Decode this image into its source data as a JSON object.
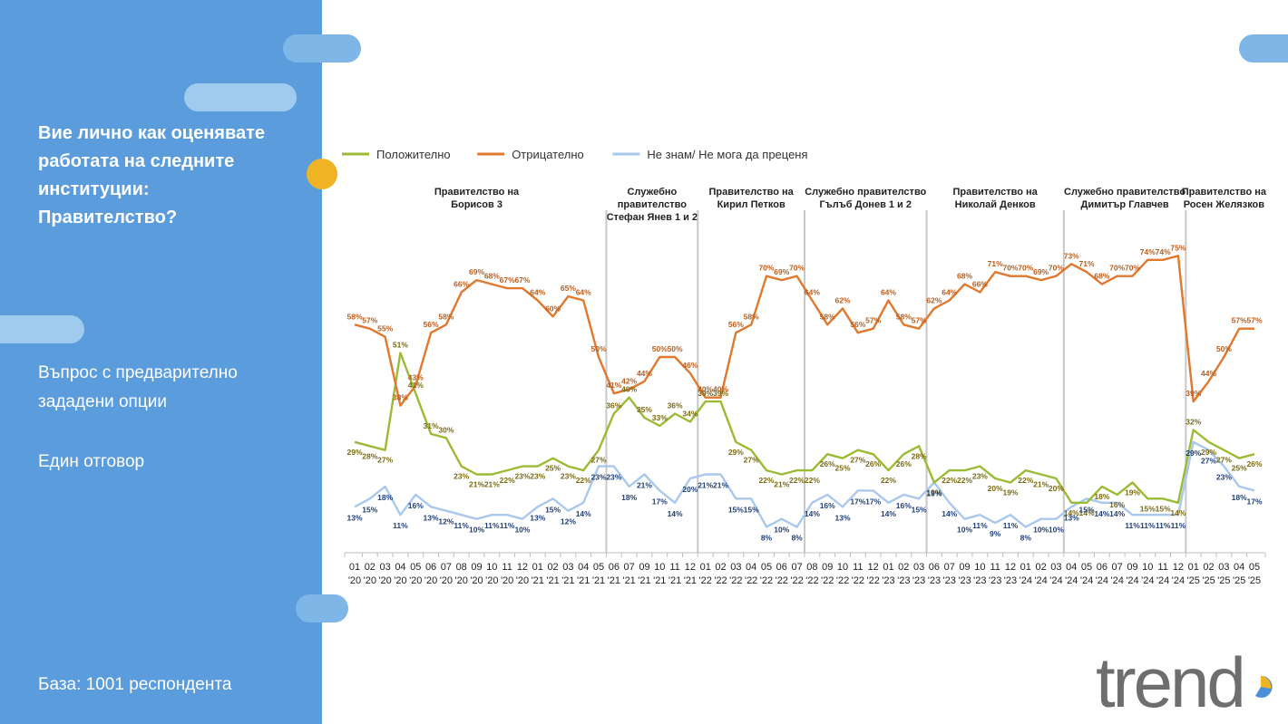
{
  "sidebar": {
    "question_lines": [
      "Вие лично как оценявате",
      "работата на следните",
      "институции:",
      "Правителство?"
    ],
    "note_lines": [
      "Въпрос с предварително",
      "зададени опции"
    ],
    "answer_type": "Един отговор",
    "base": "База:  1001 респондента"
  },
  "logo": {
    "text": "trend",
    "colors": {
      "text": "#6e6e6e",
      "accent_blue": "#4a90d9",
      "accent_yellow": "#f0b323"
    }
  },
  "colors": {
    "sidebar": "#5b9cdc",
    "pill_light": "#9fcbef",
    "pill_mid": "#7eb6e8",
    "dot": "#f0b323"
  },
  "chart_data": {
    "type": "line",
    "x": [
      "01 '20",
      "02 '20",
      "03 '20",
      "04 '20",
      "05 '20",
      "06 '20",
      "07 '20",
      "08 '20",
      "09 '20",
      "10 '20",
      "11 '20",
      "12 '20",
      "01 '21",
      "02 '21",
      "03 '21",
      "04 '21",
      "05 '21",
      "06 '21",
      "07 '21",
      "09 '21",
      "10 '21",
      "11 '21",
      "12 '21",
      "01 '22",
      "02 '22",
      "03 '22",
      "04 '22",
      "05 '22",
      "06 '22",
      "07 '22",
      "08 '22",
      "09 '22",
      "10 '22",
      "11 '22",
      "12 '22",
      "01 '23",
      "02 '23",
      "03 '23",
      "06 '23",
      "07 '23",
      "09 '23",
      "10 '23",
      "11 '23",
      "12 '23",
      "01 '24",
      "02 '24",
      "03 '24",
      "04 '24",
      "05 '24",
      "06 '24",
      "07 '24",
      "09 '24",
      "10 '24",
      "11 '24",
      "12 '24",
      "01 '25",
      "02 '25",
      "03 '25",
      "04 '25",
      "05 '25"
    ],
    "tick_labels": [
      [
        "01",
        "'20"
      ],
      [
        "02",
        "'20"
      ],
      [
        "03",
        "'20"
      ],
      [
        "04",
        "'20"
      ],
      [
        "05",
        "'20"
      ],
      [
        "06",
        "'20"
      ],
      [
        "07",
        "'20"
      ],
      [
        "08",
        "'20"
      ],
      [
        "09",
        "'20"
      ],
      [
        "10",
        "'20"
      ],
      [
        "11",
        "'20"
      ],
      [
        "12",
        "'20"
      ],
      [
        "01",
        "'21"
      ],
      [
        "02",
        "'21"
      ],
      [
        "03",
        "'21"
      ],
      [
        "04",
        "'21"
      ],
      [
        "05",
        "'21"
      ],
      [
        "06",
        "'21"
      ],
      [
        "07",
        "'21"
      ],
      [
        "09",
        "'21"
      ],
      [
        "10",
        "'21"
      ],
      [
        "11",
        "'21"
      ],
      [
        "12",
        "'21"
      ],
      [
        "01",
        "'22"
      ],
      [
        "02",
        "'22"
      ],
      [
        "03",
        "'22"
      ],
      [
        "04",
        "'22"
      ],
      [
        "05",
        "'22"
      ],
      [
        "06",
        "'22"
      ],
      [
        "07",
        "'22"
      ],
      [
        "08",
        "'22"
      ],
      [
        "09",
        "'22"
      ],
      [
        "10",
        "'22"
      ],
      [
        "11",
        "'22"
      ],
      [
        "12",
        "'22"
      ],
      [
        "01",
        "'23"
      ],
      [
        "02",
        "'23"
      ],
      [
        "03",
        "'23"
      ],
      [
        "06",
        "'23"
      ],
      [
        "07",
        "'23"
      ],
      [
        "09",
        "'23"
      ],
      [
        "10",
        "'23"
      ],
      [
        "11",
        "'23"
      ],
      [
        "12",
        "'23"
      ],
      [
        "01",
        "'24"
      ],
      [
        "02",
        "'24"
      ],
      [
        "03",
        "'24"
      ],
      [
        "04",
        "'24"
      ],
      [
        "05",
        "'24"
      ],
      [
        "06",
        "'24"
      ],
      [
        "07",
        "'24"
      ],
      [
        "09",
        "'24"
      ],
      [
        "10",
        "'24"
      ],
      [
        "11",
        "'24"
      ],
      [
        "12",
        "'24"
      ],
      [
        "01",
        "'25"
      ],
      [
        "02",
        "'25"
      ],
      [
        "03",
        "'25"
      ],
      [
        "04",
        "'25"
      ],
      [
        "05",
        "'25"
      ]
    ],
    "series": [
      {
        "name": "Положително",
        "color": "#9bbb34",
        "label_color": "#7a6a12",
        "values": [
          29,
          28,
          27,
          51,
          41,
          31,
          30,
          23,
          21,
          21,
          22,
          23,
          23,
          25,
          23,
          22,
          27,
          36,
          40,
          35,
          33,
          36,
          34,
          39,
          39,
          29,
          27,
          22,
          21,
          22,
          22,
          26,
          25,
          27,
          26,
          22,
          26,
          28,
          19,
          22,
          22,
          23,
          20,
          19,
          22,
          21,
          20,
          14,
          14,
          18,
          16,
          19,
          15,
          15,
          14,
          32,
          29,
          27,
          25,
          26
        ]
      },
      {
        "name": "Отрицателно",
        "color": "#e0782e",
        "label_color": "#b85e1e",
        "values": [
          58,
          57,
          55,
          38,
          43,
          56,
          58,
          66,
          69,
          68,
          67,
          67,
          64,
          60,
          65,
          64,
          50,
          41,
          42,
          44,
          50,
          50,
          46,
          40,
          40,
          56,
          58,
          70,
          69,
          70,
          64,
          58,
          62,
          56,
          57,
          64,
          58,
          57,
          62,
          64,
          68,
          66,
          71,
          70,
          70,
          69,
          70,
          73,
          71,
          68,
          70,
          70,
          74,
          74,
          75,
          39,
          44,
          50,
          57,
          57
        ]
      },
      {
        "name": "Не знам/ Не мога да преценя",
        "color": "#a9c8ee",
        "label_color": "#1f3f78",
        "values": [
          13,
          15,
          18,
          11,
          16,
          13,
          12,
          11,
          10,
          11,
          11,
          10,
          13,
          15,
          12,
          14,
          23,
          23,
          18,
          21,
          17,
          14,
          20,
          21,
          21,
          15,
          15,
          8,
          10,
          8,
          14,
          16,
          13,
          17,
          17,
          14,
          16,
          15,
          19,
          14,
          10,
          11,
          9,
          11,
          8,
          10,
          10,
          13,
          15,
          14,
          14,
          11,
          11,
          11,
          11,
          29,
          27,
          23,
          18,
          17
        ]
      }
    ],
    "periods": [
      {
        "lines": [
          "Правителство на",
          "Борисов 3"
        ],
        "start": 0,
        "end": 16
      },
      {
        "lines": [
          "Служебно",
          "правителство",
          "Стефан Янев 1 и 2"
        ],
        "start": 17,
        "end": 22
      },
      {
        "lines": [
          "Правителство на",
          "Кирил Петков"
        ],
        "start": 23,
        "end": 29
      },
      {
        "lines": [
          "Служебно правителство",
          "Гълъб Донев 1 и 2"
        ],
        "start": 30,
        "end": 37
      },
      {
        "lines": [
          "Правителство на",
          "Николай Денков"
        ],
        "start": 38,
        "end": 46
      },
      {
        "lines": [
          "Служебно правителство",
          "Димитър Главчев"
        ],
        "start": 47,
        "end": 54
      },
      {
        "lines": [
          "Правителство на",
          "Росен Желязков"
        ],
        "start": 55,
        "end": 59
      }
    ],
    "separators_after_index": [
      16,
      22,
      29,
      37,
      46,
      54
    ],
    "ylim": [
      5,
      80
    ],
    "grid": false,
    "legend_placement": "top-left",
    "value_suffix": "%"
  }
}
